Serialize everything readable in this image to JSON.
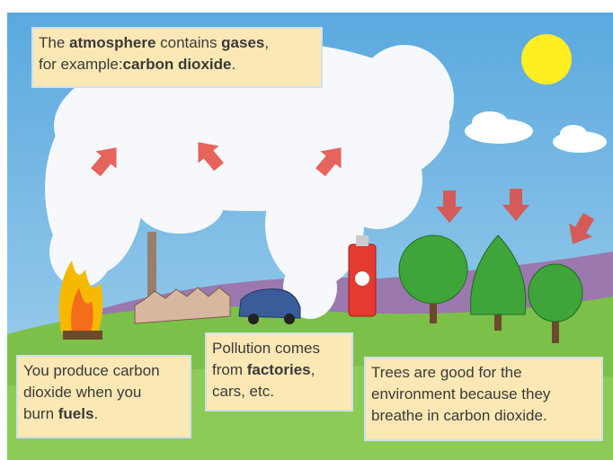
{
  "boxes": [
    {
      "lines": [
        [
          {
            "text": "The ",
            "bold": false
          },
          {
            "text": "atmosphere",
            "bold": true
          },
          {
            "text": " contains ",
            "bold": false
          },
          {
            "text": "gases",
            "bold": true
          },
          {
            "text": ",",
            "bold": false
          }
        ],
        [
          {
            "text": "for example:",
            "bold": false
          },
          {
            "text": "carbon dioxide",
            "bold": true
          },
          {
            "text": ".",
            "bold": false
          }
        ]
      ]
    },
    {
      "lines": [
        [
          {
            "text": "You produce carbon",
            "bold": false
          }
        ],
        [
          {
            "text": "dioxide when you",
            "bold": false
          }
        ],
        [
          {
            "text": "burn ",
            "bold": false
          },
          {
            "text": "fuels",
            "bold": true
          },
          {
            "text": ".",
            "bold": false
          }
        ]
      ]
    },
    {
      "lines": [
        [
          {
            "text": "Pollution comes",
            "bold": false
          }
        ],
        [
          {
            "text": "from ",
            "bold": false
          },
          {
            "text": "factories",
            "bold": true
          },
          {
            "text": ",",
            "bold": false
          }
        ],
        [
          {
            "text": "cars, etc.",
            "bold": false
          }
        ]
      ]
    },
    {
      "lines": [
        [
          {
            "text": "Trees are good for the",
            "bold": false
          }
        ],
        [
          {
            "text": "environment because they",
            "bold": false
          }
        ],
        [
          {
            "text": "breathe in carbon dioxide.",
            "bold": false
          }
        ]
      ]
    }
  ]
}
